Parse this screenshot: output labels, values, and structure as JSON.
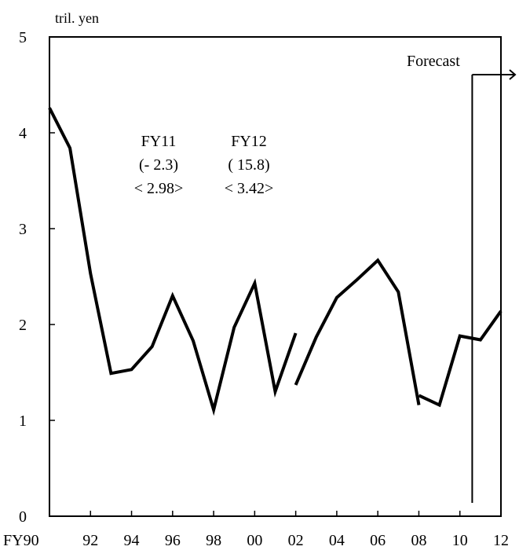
{
  "chart_data": {
    "type": "line",
    "ylabel": "tril. yen",
    "ylim": [
      0,
      5
    ],
    "xlim": [
      1990,
      2012
    ],
    "grid": false,
    "y_ticks": [
      "0",
      "1",
      "2",
      "3",
      "4",
      "5"
    ],
    "x_ticks": [
      {
        "x": 1990,
        "label": "FY90"
      },
      {
        "x": 1992,
        "label": "92"
      },
      {
        "x": 1994,
        "label": "94"
      },
      {
        "x": 1996,
        "label": "96"
      },
      {
        "x": 1998,
        "label": "98"
      },
      {
        "x": 2000,
        "label": "00"
      },
      {
        "x": 2002,
        "label": "02"
      },
      {
        "x": 2004,
        "label": "04"
      },
      {
        "x": 2006,
        "label": "06"
      },
      {
        "x": 2008,
        "label": "08"
      },
      {
        "x": 2010,
        "label": "10"
      },
      {
        "x": 2012,
        "label": "12"
      }
    ],
    "segments": [
      {
        "x": [
          1990,
          1991,
          1992,
          1993,
          1994,
          1995,
          1996,
          1997,
          1998,
          1999,
          2000,
          2001,
          2002
        ],
        "y": [
          4.26,
          3.84,
          2.53,
          1.49,
          1.53,
          1.77,
          2.3,
          1.83,
          1.11,
          1.97,
          2.43,
          1.3,
          1.91
        ]
      },
      {
        "x": [
          2002,
          2003,
          2004,
          2005,
          2006,
          2007,
          2008
        ],
        "y": [
          1.37,
          1.87,
          2.28,
          2.47,
          2.67,
          2.34,
          1.16
        ]
      },
      {
        "x": [
          2008,
          2009,
          2010,
          2011,
          2012
        ],
        "y": [
          1.26,
          1.16,
          1.88,
          1.84,
          2.14
        ]
      }
    ],
    "forecast": {
      "label": "Forecast",
      "x": 2010.6
    },
    "annotations": [
      {
        "lines": [
          "FY11",
          "(- 2.3)",
          "< 2.98>"
        ]
      },
      {
        "lines": [
          "FY12",
          "( 15.8)",
          "< 3.42>"
        ]
      }
    ]
  }
}
